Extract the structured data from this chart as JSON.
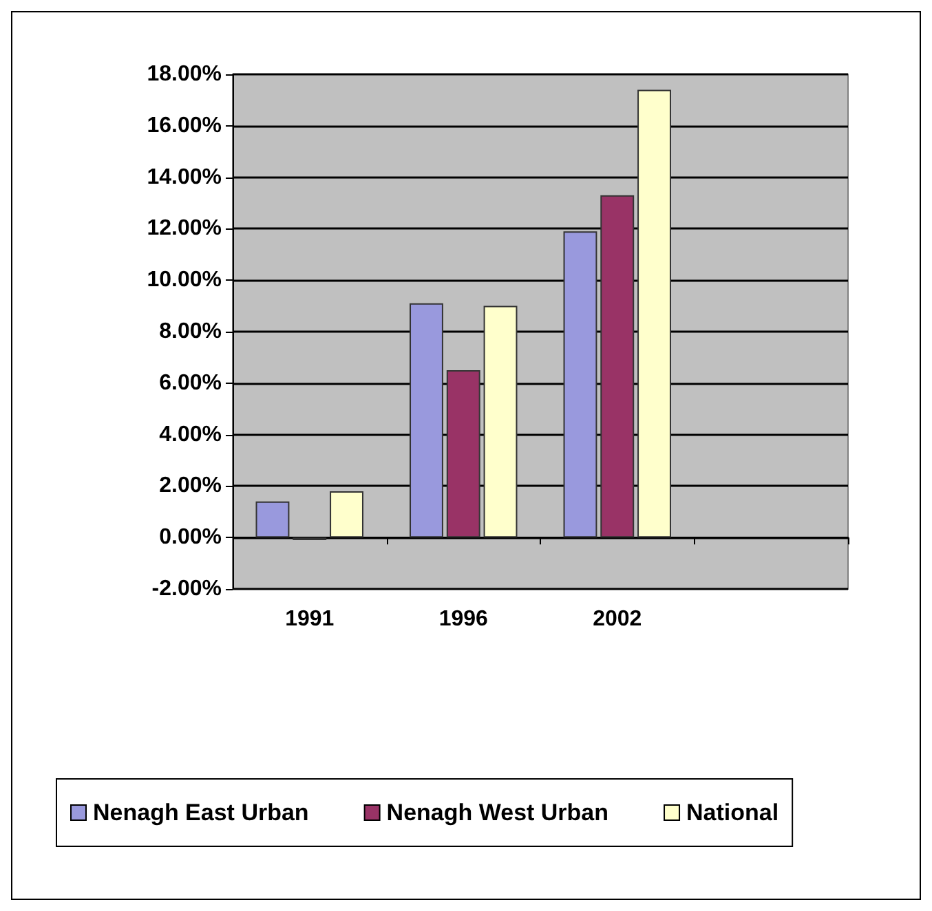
{
  "chart_data": {
    "type": "bar",
    "categories": [
      "1991",
      "1996",
      "2002",
      null
    ],
    "series": [
      {
        "name": "Nenagh East Urban",
        "color": "#9999dd",
        "values": [
          1.4,
          9.1,
          11.9,
          null
        ]
      },
      {
        "name": "Nenagh West Urban",
        "color": "#993366",
        "values": [
          -0.1,
          6.5,
          13.3,
          null
        ]
      },
      {
        "name": "National",
        "color": "#ffffcc",
        "values": [
          1.8,
          9.0,
          17.4,
          null
        ]
      }
    ],
    "ylim": [
      -2,
      18
    ],
    "yticks": [
      {
        "value": -2,
        "label": "-2.00%"
      },
      {
        "value": 0,
        "label": "0.00%"
      },
      {
        "value": 2,
        "label": "2.00%"
      },
      {
        "value": 4,
        "label": "4.00%"
      },
      {
        "value": 6,
        "label": "6.00%"
      },
      {
        "value": 8,
        "label": "8.00%"
      },
      {
        "value": 10,
        "label": "10.00%"
      },
      {
        "value": 12,
        "label": "12.00%"
      },
      {
        "value": 14,
        "label": "14.00%"
      },
      {
        "value": 16,
        "label": "16.00%"
      },
      {
        "value": 18,
        "label": "18.00%"
      }
    ],
    "grid": "y",
    "legend": "bottom"
  }
}
